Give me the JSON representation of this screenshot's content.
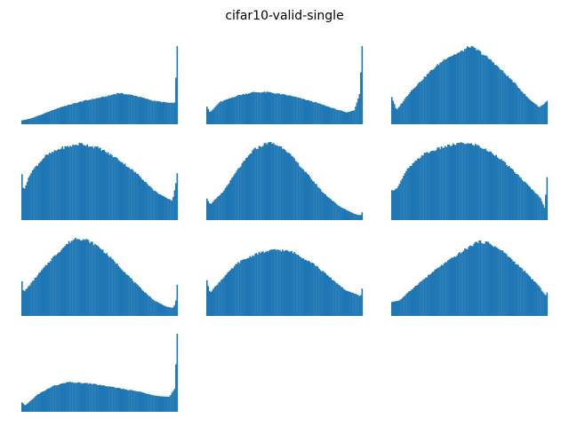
{
  "figure": {
    "title": "cifar10-valid-single"
  },
  "chart_data": {
    "type": "bar",
    "grid": false,
    "axes_visible": false,
    "bar_color": "#1f77b4",
    "bins": 120,
    "panels": [
      {
        "shape": [
          {
            "t": 0.0,
            "v": 0.05
          },
          {
            "t": 0.05,
            "v": 0.07
          },
          {
            "t": 0.12,
            "v": 0.12
          },
          {
            "t": 0.25,
            "v": 0.22
          },
          {
            "t": 0.4,
            "v": 0.3
          },
          {
            "t": 0.55,
            "v": 0.36
          },
          {
            "t": 0.62,
            "v": 0.4
          },
          {
            "t": 0.72,
            "v": 0.37
          },
          {
            "t": 0.85,
            "v": 0.3
          },
          {
            "t": 0.96,
            "v": 0.27
          },
          {
            "t": 0.985,
            "v": 0.28
          },
          {
            "t": 1.0,
            "v": 1.0
          }
        ]
      },
      {
        "shape": [
          {
            "t": 0.0,
            "v": 0.23
          },
          {
            "t": 0.02,
            "v": 0.15
          },
          {
            "t": 0.08,
            "v": 0.28
          },
          {
            "t": 0.2,
            "v": 0.37
          },
          {
            "t": 0.3,
            "v": 0.41
          },
          {
            "t": 0.4,
            "v": 0.41
          },
          {
            "t": 0.55,
            "v": 0.36
          },
          {
            "t": 0.7,
            "v": 0.28
          },
          {
            "t": 0.82,
            "v": 0.2
          },
          {
            "t": 0.9,
            "v": 0.15
          },
          {
            "t": 0.95,
            "v": 0.18
          },
          {
            "t": 0.985,
            "v": 0.4
          },
          {
            "t": 1.0,
            "v": 1.0
          }
        ]
      },
      {
        "shape": [
          {
            "t": 0.0,
            "v": 0.35
          },
          {
            "t": 0.03,
            "v": 0.18
          },
          {
            "t": 0.12,
            "v": 0.42
          },
          {
            "t": 0.25,
            "v": 0.68
          },
          {
            "t": 0.35,
            "v": 0.85
          },
          {
            "t": 0.45,
            "v": 0.93
          },
          {
            "t": 0.5,
            "v": 1.0
          },
          {
            "t": 0.56,
            "v": 0.94
          },
          {
            "t": 0.65,
            "v": 0.8
          },
          {
            "t": 0.78,
            "v": 0.55
          },
          {
            "t": 0.88,
            "v": 0.33
          },
          {
            "t": 0.95,
            "v": 0.22
          },
          {
            "t": 0.98,
            "v": 0.26
          },
          {
            "t": 1.0,
            "v": 0.3
          }
        ]
      },
      {
        "shape": [
          {
            "t": 0.0,
            "v": 0.58
          },
          {
            "t": 0.01,
            "v": 0.38
          },
          {
            "t": 0.06,
            "v": 0.62
          },
          {
            "t": 0.15,
            "v": 0.82
          },
          {
            "t": 0.25,
            "v": 0.92
          },
          {
            "t": 0.38,
            "v": 0.98
          },
          {
            "t": 0.5,
            "v": 0.92
          },
          {
            "t": 0.62,
            "v": 0.78
          },
          {
            "t": 0.75,
            "v": 0.58
          },
          {
            "t": 0.85,
            "v": 0.38
          },
          {
            "t": 0.93,
            "v": 0.28
          },
          {
            "t": 0.97,
            "v": 0.25
          },
          {
            "t": 0.99,
            "v": 0.45
          },
          {
            "t": 1.0,
            "v": 0.6
          }
        ]
      },
      {
        "shape": [
          {
            "t": 0.0,
            "v": 0.28
          },
          {
            "t": 0.02,
            "v": 0.2
          },
          {
            "t": 0.1,
            "v": 0.35
          },
          {
            "t": 0.2,
            "v": 0.65
          },
          {
            "t": 0.3,
            "v": 0.9
          },
          {
            "t": 0.4,
            "v": 1.0
          },
          {
            "t": 0.5,
            "v": 0.92
          },
          {
            "t": 0.62,
            "v": 0.65
          },
          {
            "t": 0.75,
            "v": 0.35
          },
          {
            "t": 0.85,
            "v": 0.18
          },
          {
            "t": 0.95,
            "v": 0.08
          },
          {
            "t": 0.99,
            "v": 0.06
          },
          {
            "t": 1.0,
            "v": 0.1
          }
        ]
      },
      {
        "shape": [
          {
            "t": 0.0,
            "v": 0.38
          },
          {
            "t": 0.03,
            "v": 0.4
          },
          {
            "t": 0.1,
            "v": 0.65
          },
          {
            "t": 0.2,
            "v": 0.84
          },
          {
            "t": 0.32,
            "v": 0.93
          },
          {
            "t": 0.45,
            "v": 0.99
          },
          {
            "t": 0.55,
            "v": 0.96
          },
          {
            "t": 0.68,
            "v": 0.82
          },
          {
            "t": 0.8,
            "v": 0.6
          },
          {
            "t": 0.9,
            "v": 0.4
          },
          {
            "t": 0.96,
            "v": 0.28
          },
          {
            "t": 0.985,
            "v": 0.15
          },
          {
            "t": 1.0,
            "v": 0.55
          }
        ]
      },
      {
        "shape": [
          {
            "t": 0.0,
            "v": 0.45
          },
          {
            "t": 0.01,
            "v": 0.3
          },
          {
            "t": 0.1,
            "v": 0.52
          },
          {
            "t": 0.2,
            "v": 0.75
          },
          {
            "t": 0.3,
            "v": 0.94
          },
          {
            "t": 0.35,
            "v": 1.0
          },
          {
            "t": 0.42,
            "v": 0.97
          },
          {
            "t": 0.5,
            "v": 0.88
          },
          {
            "t": 0.62,
            "v": 0.65
          },
          {
            "t": 0.75,
            "v": 0.38
          },
          {
            "t": 0.85,
            "v": 0.2
          },
          {
            "t": 0.93,
            "v": 0.12
          },
          {
            "t": 0.97,
            "v": 0.1
          },
          {
            "t": 0.99,
            "v": 0.16
          },
          {
            "t": 1.0,
            "v": 0.4
          }
        ]
      },
      {
        "shape": [
          {
            "t": 0.0,
            "v": 0.45
          },
          {
            "t": 0.02,
            "v": 0.3
          },
          {
            "t": 0.1,
            "v": 0.48
          },
          {
            "t": 0.2,
            "v": 0.68
          },
          {
            "t": 0.32,
            "v": 0.8
          },
          {
            "t": 0.45,
            "v": 0.85
          },
          {
            "t": 0.55,
            "v": 0.82
          },
          {
            "t": 0.68,
            "v": 0.68
          },
          {
            "t": 0.8,
            "v": 0.48
          },
          {
            "t": 0.9,
            "v": 0.32
          },
          {
            "t": 0.96,
            "v": 0.28
          },
          {
            "t": 0.99,
            "v": 0.25
          },
          {
            "t": 1.0,
            "v": 0.35
          }
        ]
      },
      {
        "shape": [
          {
            "t": 0.0,
            "v": 0.18
          },
          {
            "t": 0.05,
            "v": 0.2
          },
          {
            "t": 0.15,
            "v": 0.38
          },
          {
            "t": 0.3,
            "v": 0.62
          },
          {
            "t": 0.45,
            "v": 0.82
          },
          {
            "t": 0.55,
            "v": 0.95
          },
          {
            "t": 0.62,
            "v": 0.94
          },
          {
            "t": 0.72,
            "v": 0.82
          },
          {
            "t": 0.85,
            "v": 0.58
          },
          {
            "t": 0.94,
            "v": 0.4
          },
          {
            "t": 0.97,
            "v": 0.32
          },
          {
            "t": 0.99,
            "v": 0.26
          },
          {
            "t": 1.0,
            "v": 0.3
          }
        ]
      },
      {
        "shape": [
          {
            "t": 0.0,
            "v": 0.12
          },
          {
            "t": 0.02,
            "v": 0.08
          },
          {
            "t": 0.1,
            "v": 0.22
          },
          {
            "t": 0.2,
            "v": 0.33
          },
          {
            "t": 0.3,
            "v": 0.38
          },
          {
            "t": 0.45,
            "v": 0.36
          },
          {
            "t": 0.6,
            "v": 0.31
          },
          {
            "t": 0.75,
            "v": 0.26
          },
          {
            "t": 0.88,
            "v": 0.2
          },
          {
            "t": 0.95,
            "v": 0.19
          },
          {
            "t": 0.985,
            "v": 0.3
          },
          {
            "t": 1.0,
            "v": 1.0
          }
        ]
      }
    ]
  }
}
